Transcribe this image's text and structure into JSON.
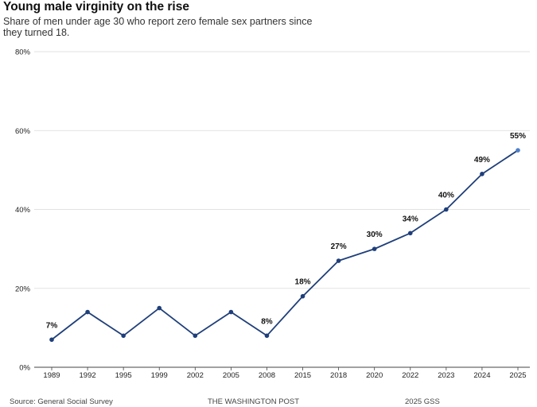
{
  "chart_data": {
    "type": "line",
    "title": "Young male virginity on the rise",
    "subtitle": "Share of men under age 30 who report zero female sex partners since they turned 18.",
    "categories": [
      "1989",
      "1992",
      "1995",
      "1999",
      "2002",
      "2005",
      "2008",
      "2015",
      "2018",
      "2020",
      "2022",
      "2023",
      "2024",
      "2025"
    ],
    "values": [
      7,
      14,
      8,
      15,
      8,
      14,
      8,
      18,
      27,
      30,
      34,
      40,
      49,
      55
    ],
    "data_labels": [
      "7%",
      "",
      "",
      "",
      "",
      "",
      "8%",
      "18%",
      "27%",
      "30%",
      "34%",
      "40%",
      "49%",
      "55%"
    ],
    "ylim": [
      0,
      80
    ],
    "yticks": [
      0,
      20,
      40,
      60,
      80
    ],
    "ytick_labels": [
      "0%",
      "20%",
      "40%",
      "60%",
      "80%"
    ],
    "grid": true,
    "line_color": "#1f3f7a",
    "last_point_color": "#4f7fc8",
    "grid_color": "#d9d9d9"
  },
  "footer": {
    "source": "Source: General Social Survey",
    "publisher": "THE WASHINGTON POST",
    "note": "2025 GSS"
  }
}
